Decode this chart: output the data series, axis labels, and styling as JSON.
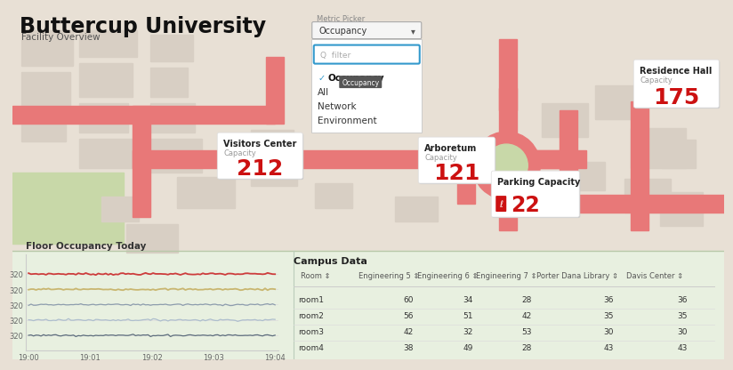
{
  "title": "Buttercup University",
  "subtitle": "Facility Overview",
  "map_bg": "#e8e0d5",
  "map_road_color": "#e87878",
  "map_green": "#c8d8a8",
  "metric_picker_label": "Metric Picker",
  "metric_picker_value": "Occupancy",
  "dropdown_options": [
    "Occupancy",
    "All",
    "Network",
    "Environment"
  ],
  "bottom_bg": "#e8f0e0",
  "floor_title": "Floor Occupancy Today",
  "floor_line_colors": [
    "#cc3333",
    "#c8b46a",
    "#8899aa",
    "#aabbcc",
    "#556677"
  ],
  "floor_xticks": [
    "19:00",
    "19:01",
    "19:02",
    "19:03",
    "19:04"
  ],
  "floor_ytick_label": "320",
  "table_title": "Campus Data",
  "table_cols": [
    "Room",
    "Engineering 5",
    "Engineering 6",
    "Engineering 7",
    "Porter Dana Library",
    "Davis Center"
  ],
  "table_rows": [
    [
      "room1",
      "60",
      "34",
      "28",
      "36",
      "36"
    ],
    [
      "room2",
      "56",
      "51",
      "42",
      "35",
      "35"
    ],
    [
      "room3",
      "42",
      "32",
      "53",
      "30",
      "30"
    ],
    [
      "room4",
      "38",
      "49",
      "28",
      "43",
      "43"
    ]
  ],
  "value_color": "#cc1111",
  "dropdown_border": "#3399cc",
  "selected_badge_bg": "#555555",
  "check_color": "#3399cc",
  "building_color": "#d8cfc4",
  "card_shadow": "#dddddd",
  "bottom_divider": "#b8c8a8"
}
